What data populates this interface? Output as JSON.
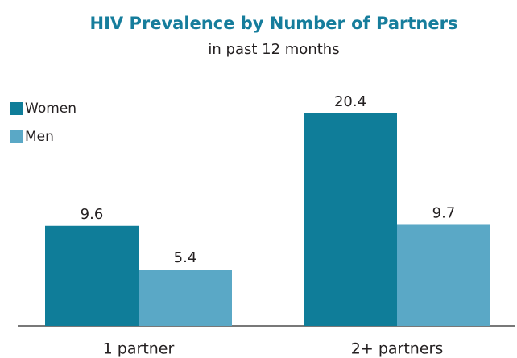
{
  "chart_data": {
    "type": "bar",
    "title": "HIV Prevalence by Number of Partners",
    "subtitle": "in past 12 months",
    "categories": [
      "1 partner",
      "2+ partners"
    ],
    "series": [
      {
        "name": "Women",
        "color": "#0f7d99",
        "values": [
          9.6,
          20.4
        ]
      },
      {
        "name": "Men",
        "color": "#5aa8c6",
        "values": [
          5.4,
          9.7
        ]
      }
    ],
    "legend": "upper left"
  }
}
